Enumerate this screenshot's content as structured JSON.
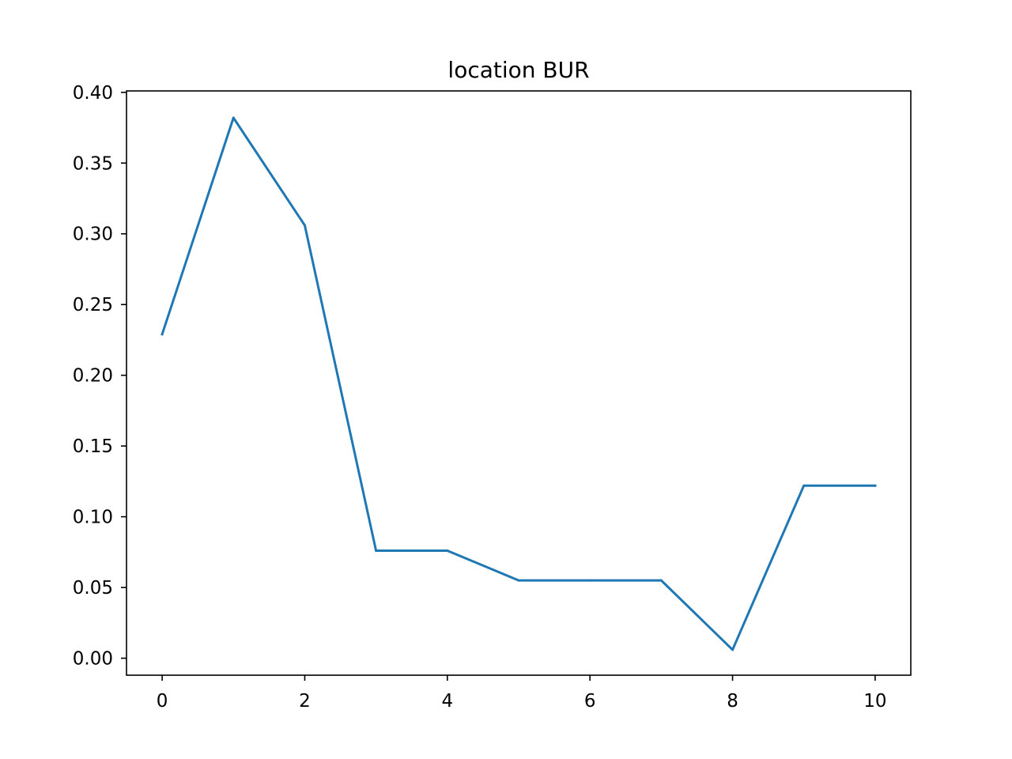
{
  "chart_data": {
    "type": "line",
    "title": "location BUR",
    "xlabel": "",
    "ylabel": "",
    "x": [
      0,
      1,
      2,
      3,
      4,
      5,
      6,
      7,
      8,
      9,
      10
    ],
    "series": [
      {
        "values": [
          0.229,
          0.382,
          0.306,
          0.076,
          0.076,
          0.055,
          0.055,
          0.055,
          0.006,
          0.122,
          0.122
        ]
      }
    ],
    "xlim": [
      -0.5,
      10.5
    ],
    "ylim": [
      -0.012,
      0.401
    ],
    "xticks": [
      0,
      2,
      4,
      6,
      8,
      10
    ],
    "xtick_labels": [
      "0",
      "2",
      "4",
      "6",
      "8",
      "10"
    ],
    "yticks": [
      0.0,
      0.05,
      0.1,
      0.15,
      0.2,
      0.25,
      0.3,
      0.35,
      0.4
    ],
    "ytick_labels": [
      "0.00",
      "0.05",
      "0.10",
      "0.15",
      "0.20",
      "0.25",
      "0.30",
      "0.35",
      "0.40"
    ],
    "grid": false,
    "legend": false,
    "line_color": "#1f77b4"
  }
}
